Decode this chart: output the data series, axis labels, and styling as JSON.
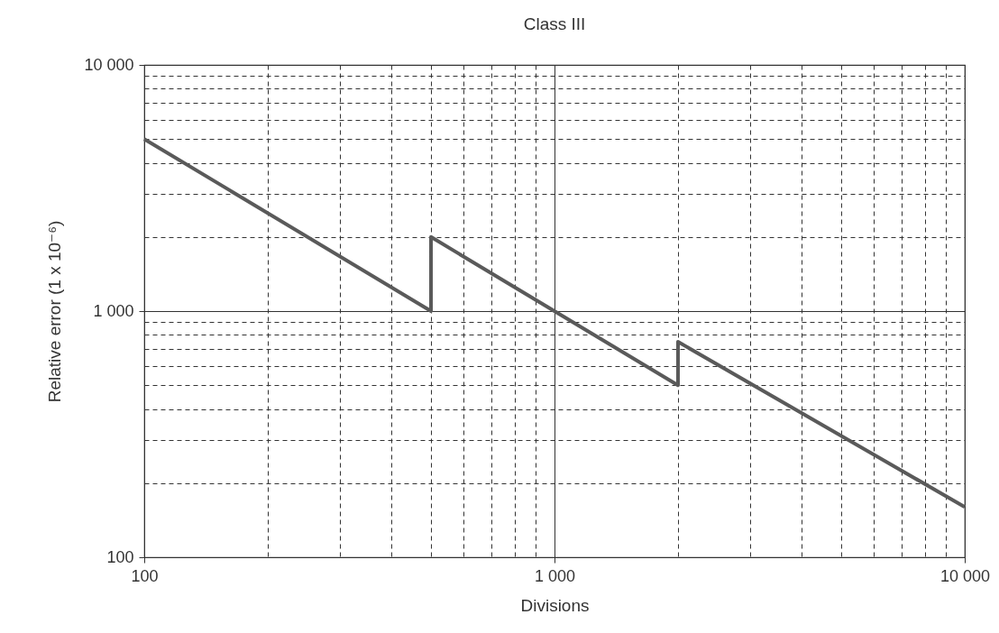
{
  "chart_data": {
    "type": "line",
    "title": "Class III",
    "xlabel": "Divisions",
    "ylabel": "Relative error (1 x 10⁻⁶)",
    "log": "xy",
    "grid": true,
    "marker": "none",
    "line_style": "solid",
    "x": [
      100,
      500,
      500,
      2000,
      2000,
      10000
    ],
    "series": [
      {
        "color": "#5a5a5a",
        "values": [
          5000,
          1000,
          2000,
          500,
          750,
          160
        ]
      }
    ],
    "xlim": [
      100,
      10000
    ],
    "ylim": [
      100,
      10000
    ],
    "xticks": [
      {
        "value": 100,
        "label": "100"
      },
      {
        "value": 200,
        "label": null
      },
      {
        "value": 300,
        "label": null
      },
      {
        "value": 400,
        "label": null
      },
      {
        "value": 500,
        "label": null
      },
      {
        "value": 600,
        "label": null
      },
      {
        "value": 700,
        "label": null
      },
      {
        "value": 800,
        "label": null
      },
      {
        "value": 900,
        "label": null
      },
      {
        "value": 1000,
        "label": "1 000"
      },
      {
        "value": 2000,
        "label": null
      },
      {
        "value": 3000,
        "label": null
      },
      {
        "value": 4000,
        "label": null
      },
      {
        "value": 5000,
        "label": null
      },
      {
        "value": 6000,
        "label": null
      },
      {
        "value": 7000,
        "label": null
      },
      {
        "value": 8000,
        "label": null
      },
      {
        "value": 9000,
        "label": null
      },
      {
        "value": 10000,
        "label": "10 000"
      }
    ],
    "yticks": [
      {
        "value": 100,
        "label": "100"
      },
      {
        "value": 200,
        "label": null
      },
      {
        "value": 300,
        "label": null
      },
      {
        "value": 400,
        "label": null
      },
      {
        "value": 500,
        "label": null
      },
      {
        "value": 600,
        "label": null
      },
      {
        "value": 700,
        "label": null
      },
      {
        "value": 800,
        "label": null
      },
      {
        "value": 900,
        "label": null
      },
      {
        "value": 1000,
        "label": "1 000"
      },
      {
        "value": 2000,
        "label": null
      },
      {
        "value": 3000,
        "label": null
      },
      {
        "value": 4000,
        "label": null
      },
      {
        "value": 5000,
        "label": null
      },
      {
        "value": 6000,
        "label": null
      },
      {
        "value": 7000,
        "label": null
      },
      {
        "value": 8000,
        "label": null
      },
      {
        "value": 9000,
        "label": null
      },
      {
        "value": 10000,
        "label": "10 000"
      }
    ]
  }
}
